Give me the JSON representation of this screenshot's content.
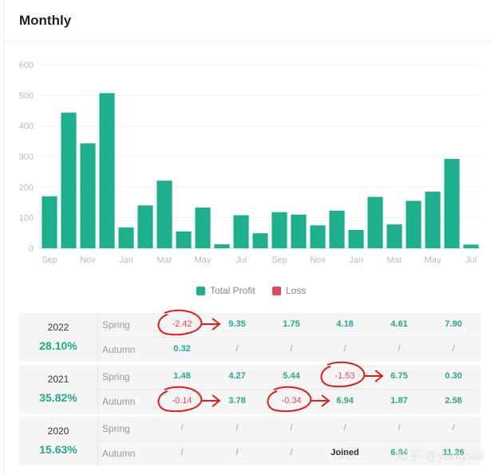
{
  "header": {
    "title": "Monthly"
  },
  "chart_data": {
    "type": "bar",
    "categories": [
      "Sep",
      "Oct",
      "Nov",
      "Dec",
      "Jan",
      "Feb",
      "Mar",
      "Apr",
      "May",
      "Jun",
      "Jul",
      "Aug",
      "Sep",
      "Oct",
      "Nov",
      "Dec",
      "Jan",
      "Feb",
      "Mar",
      "Apr",
      "May",
      "Jun",
      "Jul"
    ],
    "tick_labels": [
      "Sep",
      "",
      "Nov",
      "",
      "Jan",
      "",
      "Mar",
      "",
      "May",
      "",
      "Jul",
      "",
      "Sep",
      "",
      "Nov",
      "",
      "Jan",
      "",
      "Mar",
      "",
      "May",
      "",
      "Jul"
    ],
    "series": [
      {
        "name": "Total Profit",
        "color": "#1eaf8f",
        "values": [
          170,
          443,
          343,
          507,
          68,
          140,
          221,
          55,
          133,
          13,
          108,
          49,
          118,
          110,
          75,
          123,
          60,
          168,
          78,
          155,
          185,
          292,
          12
        ]
      },
      {
        "name": "Loss",
        "color": "#e0475f",
        "values": [
          0,
          0,
          0,
          0,
          0,
          0,
          0,
          0,
          0,
          0,
          0,
          0,
          0,
          0,
          0,
          0,
          0,
          0,
          0,
          0,
          0,
          0,
          0
        ]
      }
    ],
    "yticks": [
      "0",
      "100",
      "200",
      "300",
      "400",
      "500",
      "600"
    ],
    "ylim": [
      0,
      600
    ],
    "grid": true,
    "legend": "bottom"
  },
  "legend": {
    "items": [
      {
        "label": "Total Profit",
        "color": "#1eaf8f"
      },
      {
        "label": "Loss",
        "color": "#e0475f"
      }
    ]
  },
  "years": [
    {
      "year": "2022",
      "total": "28.10%",
      "rows": [
        {
          "season": "Spring",
          "cells": [
            {
              "v": "-2.42",
              "t": "neg",
              "circled": true
            },
            {
              "v": "9.35",
              "t": "pos"
            },
            {
              "v": "1.75",
              "t": "pos"
            },
            {
              "v": "4.18",
              "t": "pos"
            },
            {
              "v": "4.61",
              "t": "pos"
            },
            {
              "v": "7.90",
              "t": "pos"
            }
          ]
        },
        {
          "season": "Autumn",
          "cells": [
            {
              "v": "0.32",
              "t": "pos"
            },
            {
              "v": "/",
              "t": "na"
            },
            {
              "v": "/",
              "t": "na"
            },
            {
              "v": "/",
              "t": "na"
            },
            {
              "v": "/",
              "t": "na"
            },
            {
              "v": "/",
              "t": "na"
            }
          ]
        }
      ]
    },
    {
      "year": "2021",
      "total": "35.82%",
      "rows": [
        {
          "season": "Spring",
          "cells": [
            {
              "v": "1.48",
              "t": "pos"
            },
            {
              "v": "4.27",
              "t": "pos"
            },
            {
              "v": "5.44",
              "t": "pos"
            },
            {
              "v": "-1.53",
              "t": "neg",
              "circled": true
            },
            {
              "v": "6.75",
              "t": "pos"
            },
            {
              "v": "0.30",
              "t": "pos"
            }
          ]
        },
        {
          "season": "Autumn",
          "cells": [
            {
              "v": "-0.14",
              "t": "neg",
              "circled": true
            },
            {
              "v": "3.78",
              "t": "pos"
            },
            {
              "v": "-0.34",
              "t": "neg",
              "circled": true
            },
            {
              "v": "6.94",
              "t": "pos"
            },
            {
              "v": "1.87",
              "t": "pos"
            },
            {
              "v": "2.58",
              "t": "pos"
            }
          ]
        }
      ]
    },
    {
      "year": "2020",
      "total": "15.63%",
      "rows": [
        {
          "season": "Spring",
          "cells": [
            {
              "v": "/",
              "t": "na"
            },
            {
              "v": "/",
              "t": "na"
            },
            {
              "v": "/",
              "t": "na"
            },
            {
              "v": "/",
              "t": "na"
            },
            {
              "v": "/",
              "t": "na"
            },
            {
              "v": "/",
              "t": "na"
            }
          ]
        },
        {
          "season": "Autumn",
          "cells": [
            {
              "v": "/",
              "t": "na"
            },
            {
              "v": "/",
              "t": "na"
            },
            {
              "v": "/",
              "t": "na"
            },
            {
              "v": "Joined",
              "t": "joined"
            },
            {
              "v": "6.84",
              "t": "pos"
            },
            {
              "v": "11.26",
              "t": "pos"
            }
          ]
        }
      ]
    }
  ],
  "watermark": "知乎 @yangsail"
}
